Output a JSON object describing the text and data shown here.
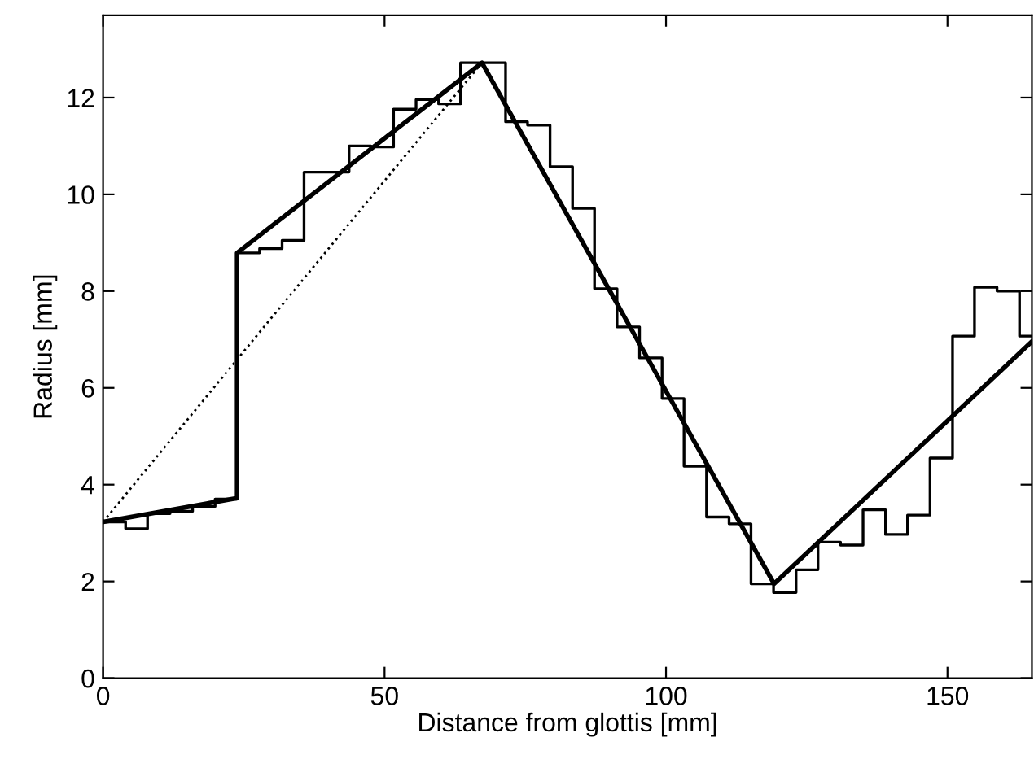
{
  "chart_data": {
    "type": "line",
    "xlabel": "Distance from glottis [mm]",
    "ylabel": "Radius [mm]",
    "xlim": [
      0,
      165
    ],
    "ylim": [
      0,
      13.7
    ],
    "xticks": [
      0,
      50,
      100,
      150
    ],
    "yticks": [
      0,
      2,
      4,
      6,
      8,
      10,
      12
    ],
    "grid": false,
    "marker": "none",
    "series": [
      {
        "type": "step",
        "color": "#000000",
        "line_style": "solid",
        "x": [
          0,
          4.0,
          7.9,
          11.9,
          15.9,
          19.9,
          23.8,
          27.8,
          31.8,
          35.7,
          39.7,
          43.7,
          47.6,
          51.6,
          55.6,
          59.6,
          63.5,
          67.5,
          71.5,
          75.4,
          79.4,
          83.4,
          87.3,
          91.3,
          95.3,
          99.3,
          103.2,
          107.2,
          111.2,
          115.1,
          119.1,
          123.1,
          127.0,
          131.0,
          135.0,
          139.0,
          142.9,
          146.9,
          150.9,
          154.8,
          158.8,
          162.8,
          165
        ],
        "values": [
          3.23,
          3.09,
          3.4,
          3.45,
          3.55,
          3.7,
          8.79,
          8.88,
          9.05,
          10.46,
          10.46,
          11.0,
          10.98,
          11.76,
          11.96,
          11.87,
          12.72,
          12.72,
          11.5,
          11.43,
          10.57,
          9.71,
          8.05,
          7.26,
          6.62,
          5.78,
          4.38,
          3.33,
          3.19,
          1.95,
          1.77,
          2.24,
          2.81,
          2.75,
          3.48,
          2.97,
          3.37,
          4.55,
          7.07,
          8.08,
          8.0,
          7.07,
          7.07
        ]
      },
      {
        "color": "#000000",
        "line_style": "solid",
        "x": [
          0,
          23.8,
          23.8,
          67.3,
          119.2,
          165
        ],
        "values": [
          3.23,
          3.72,
          8.79,
          12.72,
          1.95,
          6.96
        ]
      },
      {
        "color": "#000000",
        "line_style": "dotted",
        "x": [
          0,
          67.3
        ],
        "values": [
          3.23,
          12.72
        ]
      }
    ]
  }
}
